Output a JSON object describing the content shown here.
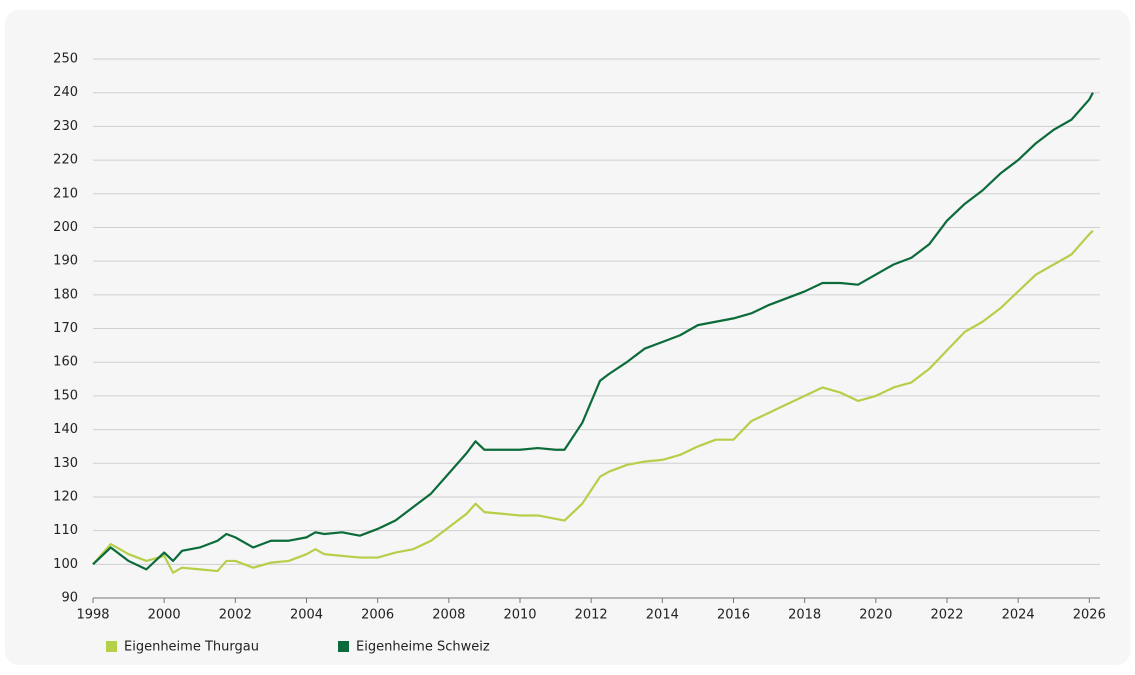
{
  "chart_data": {
    "type": "line",
    "x": [
      1998,
      1998.5,
      1999,
      1999.5,
      2000,
      2000.25,
      2000.5,
      2001,
      2001.5,
      2001.75,
      2002,
      2002.5,
      2003,
      2003.5,
      2004,
      2004.25,
      2004.5,
      2005,
      2005.5,
      2006,
      2006.5,
      2007,
      2007.5,
      2008,
      2008.5,
      2008.75,
      2009,
      2009.5,
      2010,
      2010.5,
      2011,
      2011.25,
      2011.75,
      2012.25,
      2012.5,
      2013,
      2013.5,
      2014,
      2014.5,
      2015,
      2015.5,
      2016,
      2016.5,
      2017,
      2017.5,
      2018,
      2018.5,
      2019,
      2019.5,
      2020,
      2020.5,
      2021,
      2021.5,
      2022,
      2022.5,
      2023,
      2023.5,
      2024,
      2024.5,
      2025,
      2025.5,
      2026,
      2026.1
    ],
    "series": [
      {
        "name": "Eigenheime Thurgau",
        "color": "#b5cf48",
        "values": [
          100,
          106,
          103,
          101,
          102.5,
          97.5,
          99,
          98.5,
          98,
          101,
          101,
          99,
          100.5,
          101,
          103,
          104.5,
          103,
          102.5,
          102,
          102,
          103.5,
          104.5,
          107,
          111,
          115,
          118,
          115.5,
          115,
          114.5,
          114.5,
          113.5,
          113,
          118,
          126,
          127.5,
          129.5,
          130.5,
          131,
          132.5,
          135,
          137,
          137,
          142.5,
          145,
          147.5,
          150,
          152.5,
          151,
          148.5,
          150,
          152.5,
          154,
          158,
          163.5,
          169,
          172,
          176,
          181,
          186,
          189,
          192,
          198,
          199
        ]
      },
      {
        "name": "Eigenheime Schweiz",
        "color": "#0b6b3a",
        "values": [
          100,
          105,
          101,
          98.5,
          103.5,
          101,
          104,
          105,
          107,
          109,
          108,
          105,
          107,
          107,
          108,
          109.5,
          109,
          109.5,
          108.5,
          110.5,
          113,
          117,
          121,
          127,
          133,
          136.5,
          134,
          134,
          134,
          134.5,
          134,
          134,
          142,
          154.5,
          156.5,
          160,
          164,
          166,
          168,
          171,
          172,
          173,
          174.5,
          177,
          179,
          181,
          183.5,
          183.5,
          183,
          186,
          189,
          191,
          195,
          202,
          207,
          211,
          216,
          220,
          225,
          229,
          232,
          238,
          240
        ]
      }
    ],
    "xlim": [
      1998,
      2026.3
    ],
    "xticks": [
      1998,
      2000,
      2002,
      2004,
      2006,
      2008,
      2010,
      2012,
      2014,
      2016,
      2018,
      2020,
      2022,
      2024,
      2026
    ],
    "ylim": [
      90,
      250
    ],
    "yticks": [
      90,
      100,
      110,
      120,
      130,
      140,
      150,
      160,
      170,
      180,
      190,
      200,
      210,
      220,
      230,
      240,
      250
    ],
    "grid": true
  }
}
